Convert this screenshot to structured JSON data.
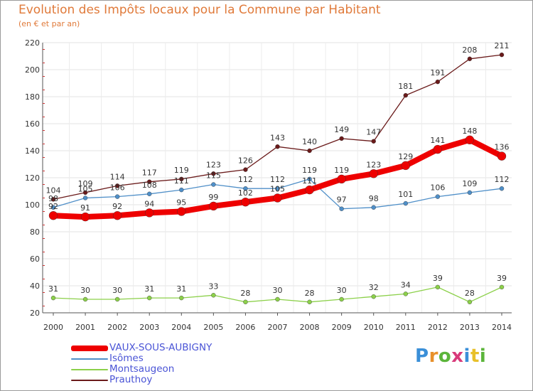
{
  "chart_data": {
    "type": "line",
    "title": "Evolution des Impôts locaux pour la Commune par Habitant",
    "subtitle": "(en € et par an)",
    "xlabel": "",
    "ylabel": "",
    "ylim": [
      20,
      220
    ],
    "yticks": [
      "20",
      "40",
      "60",
      "80",
      "100",
      "120",
      "140",
      "160",
      "180",
      "200",
      "220"
    ],
    "x": [
      "2000",
      "2001",
      "2002",
      "2003",
      "2004",
      "2005",
      "2006",
      "2007",
      "2008",
      "2009",
      "2010",
      "2011",
      "2012",
      "2013",
      "2014"
    ],
    "grid": true,
    "series": [
      {
        "name": "Prauthoy",
        "color": "#6a1a1a",
        "values": [
          104,
          109,
          114,
          117,
          119,
          123,
          126,
          143,
          140,
          149,
          147,
          181,
          191,
          208,
          211
        ]
      },
      {
        "name": "Isômes",
        "color": "#4f8fc8",
        "values": [
          98,
          105,
          106,
          108,
          111,
          115,
          112,
          112,
          119,
          97,
          98,
          101,
          106,
          109,
          112
        ]
      },
      {
        "name": "Montsaugeon",
        "color": "#8cd04a",
        "values": [
          31,
          30,
          30,
          31,
          31,
          33,
          28,
          30,
          28,
          30,
          32,
          34,
          39,
          28,
          39
        ]
      },
      {
        "name": "VAUX-SOUS-AUBIGNY",
        "color": "#ee0000",
        "values": [
          92,
          91,
          92,
          94,
          95,
          99,
          102,
          105,
          111,
          119,
          123,
          129,
          141,
          148,
          136
        ]
      }
    ]
  },
  "brand": {
    "name": "Proxiti"
  }
}
